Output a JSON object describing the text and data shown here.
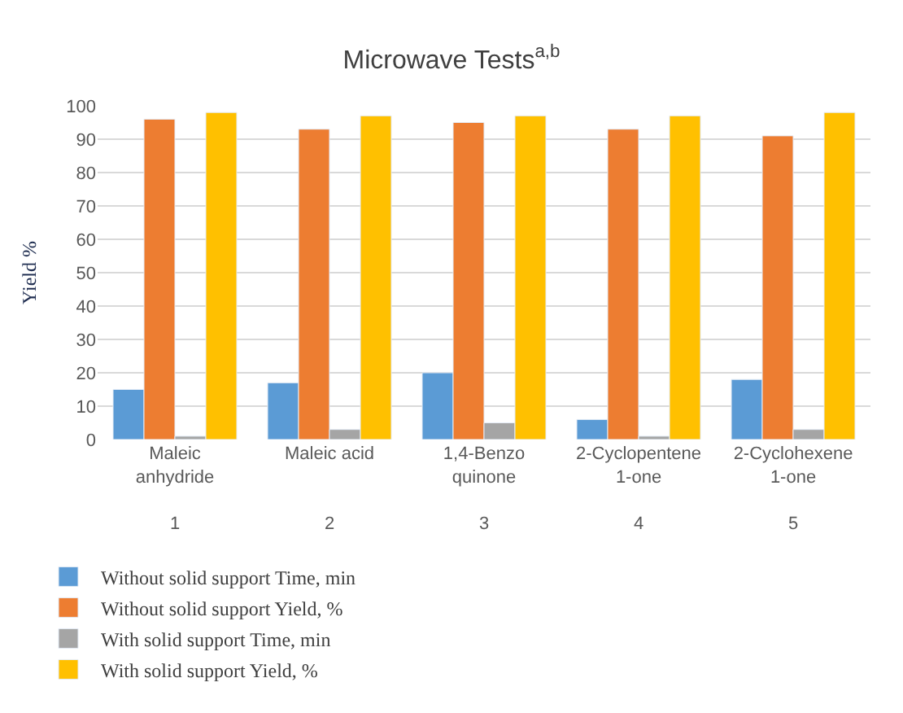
{
  "chart_data": {
    "type": "bar",
    "title": "Microwave Tests$^{a,b}$",
    "ylabel": "Yield %",
    "categories": [
      "Maleic\nanhydride\n\n1",
      "Maleic acid\n\n\n2",
      "1,4-Benzo\nquinone\n\n3",
      "2-Cyclopentene\n1-one\n\n4",
      "2-Cyclohexene\n1-one\n\n5"
    ],
    "series": [
      {
        "name": "Without solid support Time, min",
        "color": "#5b9bd5",
        "values": [
          15,
          17,
          20,
          6,
          18
        ]
      },
      {
        "name": "Without solid support Yield, %",
        "color": "#ed7d31",
        "values": [
          96,
          93,
          95,
          93,
          91
        ]
      },
      {
        "name": "With solid support Time, min",
        "color": "#a5a5a5",
        "values": [
          1,
          3,
          5,
          1,
          3
        ]
      },
      {
        "name": "With solid support Yield, %",
        "color": "#ffc000",
        "values": [
          98,
          97,
          97,
          97,
          98
        ]
      }
    ],
    "ylim": [
      0,
      100
    ],
    "yticks": [
      0,
      10,
      20,
      30,
      40,
      50,
      60,
      70,
      80,
      90,
      100
    ],
    "grid": "y",
    "legend": "bottom"
  }
}
